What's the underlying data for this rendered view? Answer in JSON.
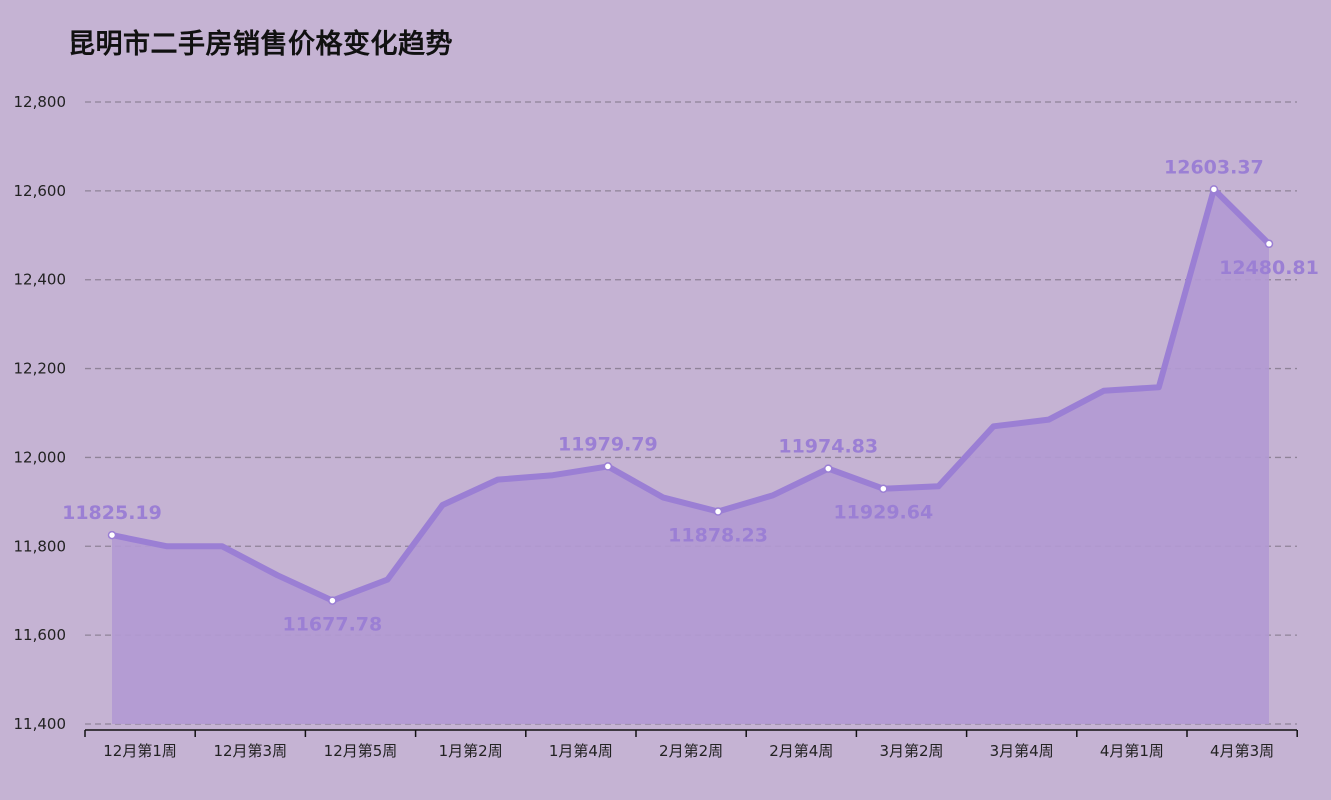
{
  "chart_data": {
    "type": "area",
    "title": "昆明市二手房销售价格变化趋势",
    "xlabel": "",
    "ylabel": "",
    "ylim": [
      11400,
      12800
    ],
    "yticks": [
      11400,
      11600,
      11800,
      12000,
      12200,
      12400,
      12600,
      12800
    ],
    "ytick_labels": [
      "11,400",
      "11,600",
      "11,800",
      "12,000",
      "12,200",
      "12,400",
      "12,600",
      "12,800"
    ],
    "x_tick_labels": [
      "12月第1周",
      "12月第3周",
      "12月第5周",
      "1月第2周",
      "1月第4周",
      "2月第2周",
      "2月第4周",
      "3月第2周",
      "3月第4周",
      "4月第1周",
      "4月第3周"
    ],
    "values": [
      11825.19,
      11800,
      11800,
      11735,
      11677.78,
      11725,
      11893,
      11950,
      11960,
      11979.79,
      11910,
      11878.23,
      11915,
      11974.83,
      11929.64,
      11935,
      12070,
      12085,
      12150,
      12158,
      12603.37,
      12480.81
    ],
    "labeled_points": [
      {
        "index": 0,
        "text": "11825.19",
        "position": "above"
      },
      {
        "index": 4,
        "text": "11677.78",
        "position": "below"
      },
      {
        "index": 9,
        "text": "11979.79",
        "position": "above"
      },
      {
        "index": 11,
        "text": "11878.23",
        "position": "below"
      },
      {
        "index": 13,
        "text": "11974.83",
        "position": "above"
      },
      {
        "index": 14,
        "text": "11929.64",
        "position": "below"
      },
      {
        "index": 20,
        "text": "12603.37",
        "position": "above"
      },
      {
        "index": 21,
        "text": "12480.81",
        "position": "below"
      }
    ],
    "grid": true,
    "colors": {
      "line": "#9b7fd4",
      "fill": "#b29ad2",
      "label": "#9b7fd4",
      "grid": "#8f8398"
    }
  }
}
